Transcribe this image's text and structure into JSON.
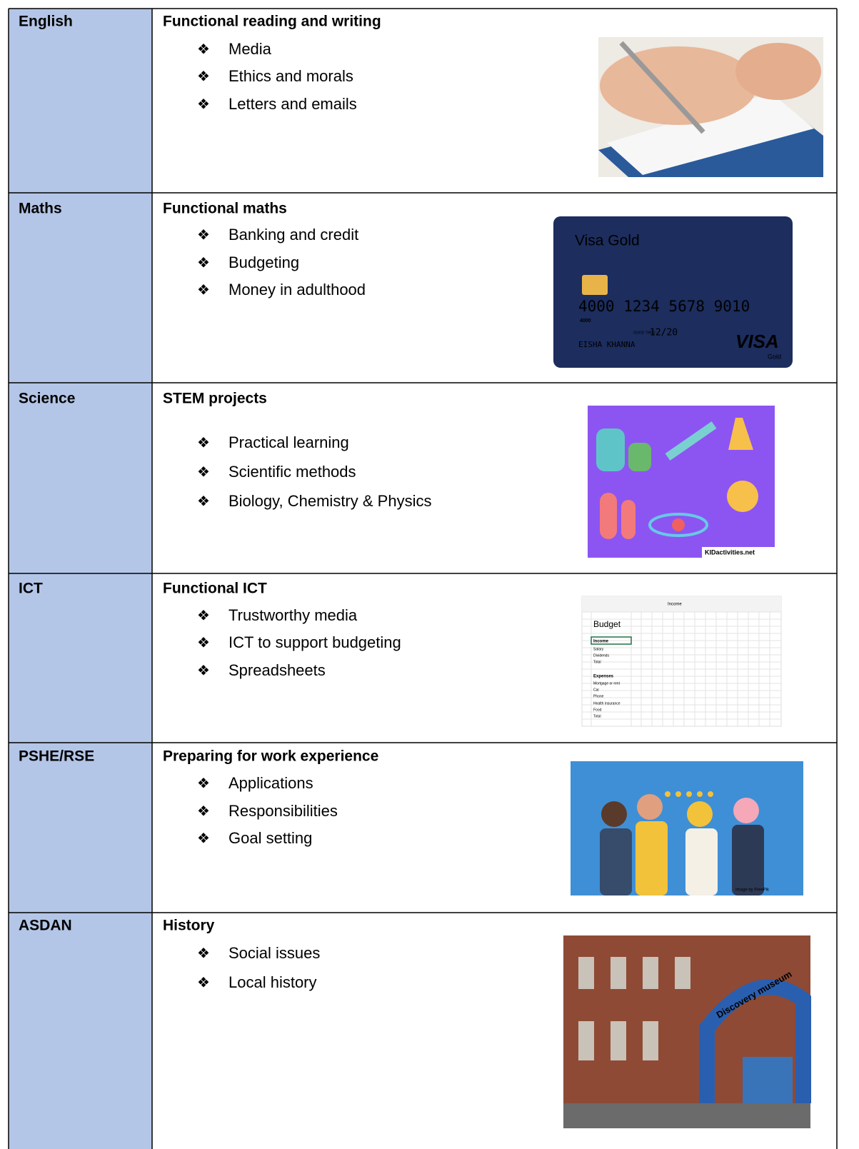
{
  "bullet_symbol": "❖",
  "table": {
    "rows": [
      {
        "subject": "English",
        "heading": "Functional reading and writing",
        "items": [
          "Media",
          "Ethics and morals",
          "Letters and emails"
        ]
      },
      {
        "subject": "Maths",
        "heading": "Functional maths",
        "items": [
          "Banking and credit",
          "Budgeting",
          "Money in adulthood"
        ],
        "image_text": [
          "Visa Gold",
          "4000 1234 5678 9010",
          "4000",
          "GOOD THRU",
          "12/20",
          "EISHA KHANNA",
          "VISA",
          "Gold"
        ]
      },
      {
        "subject": "Science",
        "heading": "STEM projects",
        "items": [
          "Practical learning",
          "Scientific methods",
          "Biology, Chemistry & Physics"
        ],
        "image_text": [
          "KIDactivities.net"
        ]
      },
      {
        "subject": "ICT",
        "heading": "Functional ICT",
        "items": [
          "Trustworthy media",
          "ICT to support budgeting",
          "Spreadsheets"
        ],
        "image_text": [
          "Income",
          "Budget",
          "Income",
          "Salary",
          "Dividends",
          "Total",
          "Expenses",
          "Mortgage or rent",
          "Car",
          "Phone",
          "Health insurance",
          "Food",
          "Total"
        ]
      },
      {
        "subject": "PSHE/RSE",
        "heading": "Preparing for work experience",
        "items": [
          "Applications",
          "Responsibilities",
          "Goal setting"
        ],
        "image_text": [
          "Image by FreePik"
        ]
      },
      {
        "subject": "ASDAN",
        "heading": "History",
        "items": [
          "Social issues",
          "Local history"
        ],
        "image_text": [
          "Discovery museum"
        ]
      }
    ]
  }
}
